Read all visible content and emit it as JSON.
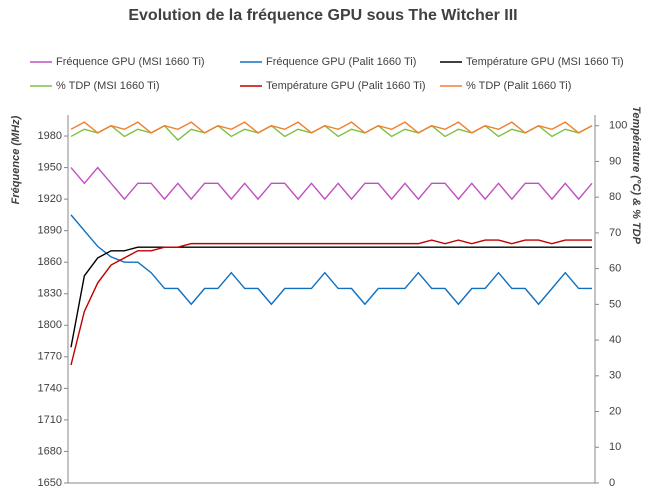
{
  "chart_data": {
    "type": "line",
    "title": "Evolution de la fréquence GPU sous The Witcher III",
    "y_label": "Fréquence (MHz)",
    "y2_label": "Température (°C) & % TDP",
    "ylim": [
      1650,
      2000
    ],
    "yticks": [
      1650,
      1680,
      1710,
      1740,
      1770,
      1800,
      1830,
      1860,
      1890,
      1920,
      1950,
      1980
    ],
    "y2lim": [
      0,
      103
    ],
    "y2ticks": [
      0,
      10,
      20,
      30,
      40,
      50,
      60,
      70,
      80,
      90,
      100
    ],
    "grid": false,
    "series": [
      {
        "name": "Fréquence GPU (MSI 1660 Ti)",
        "color": "#c050c0",
        "axis": "y",
        "values": [
          1950,
          1935,
          1950,
          1935,
          1920,
          1935,
          1935,
          1920,
          1935,
          1920,
          1935,
          1935,
          1920,
          1935,
          1920,
          1935,
          1935,
          1920,
          1935,
          1920,
          1935,
          1920,
          1935,
          1935,
          1920,
          1935,
          1920,
          1935,
          1935,
          1920,
          1935,
          1920,
          1935,
          1920,
          1935,
          1935,
          1920,
          1935,
          1920,
          1935
        ]
      },
      {
        "name": "Fréquence GPU (Palit 1660 Ti)",
        "color": "#1070c0",
        "axis": "y",
        "values": [
          1905,
          1890,
          1875,
          1865,
          1860,
          1860,
          1850,
          1835,
          1835,
          1820,
          1835,
          1835,
          1850,
          1835,
          1835,
          1820,
          1835,
          1835,
          1835,
          1850,
          1835,
          1835,
          1820,
          1835,
          1835,
          1835,
          1850,
          1835,
          1835,
          1820,
          1835,
          1835,
          1850,
          1835,
          1835,
          1820,
          1835,
          1850,
          1835,
          1835
        ]
      },
      {
        "name": "Température GPU  (MSI 1660 Ti)",
        "color": "#000000",
        "axis": "y2",
        "values": [
          38,
          58,
          63,
          65,
          65,
          66,
          66,
          66,
          66,
          66,
          66,
          66,
          66,
          66,
          66,
          66,
          66,
          66,
          66,
          66,
          66,
          66,
          66,
          66,
          66,
          66,
          66,
          66,
          66,
          66,
          66,
          66,
          66,
          66,
          66,
          66,
          66,
          66,
          66,
          66
        ]
      },
      {
        "name": "% TDP (MSI 1660 Ti)",
        "color": "#80c040",
        "axis": "y2",
        "values": [
          97,
          99,
          98,
          100,
          97,
          99,
          98,
          100,
          96,
          99,
          98,
          100,
          97,
          99,
          98,
          100,
          97,
          99,
          98,
          100,
          97,
          99,
          98,
          100,
          97,
          99,
          98,
          100,
          97,
          99,
          98,
          100,
          97,
          99,
          98,
          100,
          97,
          99,
          98,
          100
        ]
      },
      {
        "name": "Température GPU  (Palit 1660 Ti)",
        "color": "#c00000",
        "axis": "y2",
        "values": [
          33,
          48,
          56,
          61,
          63,
          65,
          65,
          66,
          66,
          67,
          67,
          67,
          67,
          67,
          67,
          67,
          67,
          67,
          67,
          67,
          67,
          67,
          67,
          67,
          67,
          67,
          67,
          68,
          67,
          68,
          67,
          68,
          68,
          67,
          68,
          68,
          67,
          68,
          68,
          68
        ]
      },
      {
        "name": "% TDP (Palit 1660 Ti)",
        "color": "#f08030",
        "axis": "y2",
        "values": [
          99,
          101,
          98,
          100,
          99,
          101,
          98,
          100,
          99,
          101,
          98,
          100,
          99,
          101,
          98,
          100,
          99,
          101,
          98,
          100,
          99,
          101,
          98,
          100,
          99,
          101,
          98,
          100,
          99,
          101,
          98,
          100,
          99,
          101,
          98,
          100,
          99,
          101,
          98,
          100
        ]
      }
    ]
  }
}
